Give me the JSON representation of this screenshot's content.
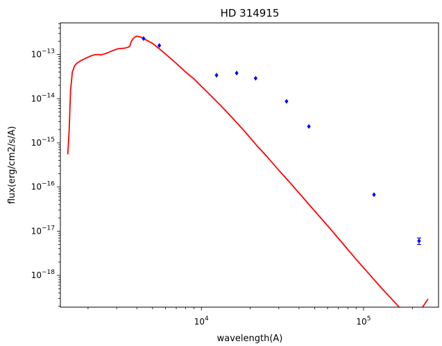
{
  "chart_data": {
    "type": "scatter",
    "title": "HD 314915",
    "xlabel": "wavelength(A)",
    "ylabel": "flux(erg/cm2/s/A)",
    "xscale": "log",
    "yscale": "log",
    "xlim": [
      1350,
      290000
    ],
    "ylim": [
      1.9e-19,
      5.2e-13
    ],
    "x_ticks": [
      {
        "value": 10000,
        "base": "10",
        "exp": "4"
      },
      {
        "value": 100000,
        "base": "10",
        "exp": "5"
      }
    ],
    "y_ticks": [
      {
        "value": 1e-13,
        "base": "10",
        "exp": "−13"
      },
      {
        "value": 1e-14,
        "base": "10",
        "exp": "−14"
      },
      {
        "value": 1e-15,
        "base": "10",
        "exp": "−15"
      },
      {
        "value": 1e-16,
        "base": "10",
        "exp": "−16"
      },
      {
        "value": 1e-17,
        "base": "10",
        "exp": "−17"
      },
      {
        "value": 1e-18,
        "base": "10",
        "exp": "−18"
      }
    ],
    "grid": false,
    "legend": "none",
    "series": [
      {
        "kind": "model_line",
        "color": "#ff0000",
        "x": [
          1500,
          1530,
          1560,
          1600,
          1650,
          1700,
          1800,
          1900,
          2000,
          2100,
          2200,
          2300,
          2400,
          2500,
          2600,
          2700,
          2800,
          2900,
          3000,
          3100,
          3200,
          3300,
          3400,
          3500,
          3600,
          3650,
          3700,
          3800,
          3900,
          4000,
          4100,
          4200,
          4400,
          4600,
          5000,
          5500,
          6000,
          7000,
          8000,
          9000,
          10000,
          11000,
          12000,
          13000,
          14000,
          15000,
          17000,
          19000,
          22000,
          25000,
          30000,
          35000,
          40000,
          50000,
          60000,
          75000,
          90000,
          110000,
          130000,
          160000,
          200000,
          250000
        ],
        "y": [
          5.5e-16,
          2e-15,
          1.5e-14,
          4e-14,
          5.5e-14,
          6.3e-14,
          7.2e-14,
          8e-14,
          8.7e-14,
          9.4e-14,
          9.9e-14,
          1e-13,
          9.8e-14,
          1.02e-13,
          1.07e-13,
          1.13e-13,
          1.2e-13,
          1.26e-13,
          1.32e-13,
          1.36e-13,
          1.37e-13,
          1.38e-13,
          1.4e-13,
          1.45e-13,
          1.5e-13,
          1.7e-13,
          2e-13,
          2.3e-13,
          2.5e-13,
          2.6e-13,
          2.55e-13,
          2.5e-13,
          2.3e-13,
          2.1e-13,
          1.78e-13,
          1.35e-13,
          1.03e-13,
          6.3e-14,
          4e-14,
          2.8e-14,
          1.9e-14,
          1.35e-14,
          9.8e-15,
          7.3e-15,
          5.5e-15,
          4.2e-15,
          2.55e-15,
          1.62e-15,
          8.6e-16,
          5.2e-16,
          2.4e-16,
          1.28e-16,
          7.3e-17,
          2.85e-17,
          1.33e-17,
          5.1e-18,
          2.3e-18,
          1e-18,
          5e-19,
          2.2e-19,
          8.8e-20,
          2.9e-19
        ]
      },
      {
        "kind": "photometry",
        "color": "#0000ff",
        "x": [
          4400,
          5500,
          12400,
          16500,
          21600,
          33500,
          46000,
          116000,
          220000
        ],
        "y": [
          2.3e-13,
          1.6e-13,
          3.4e-14,
          3.8e-14,
          2.9e-14,
          8.7e-15,
          2.35e-15,
          6.7e-17,
          6e-18
        ],
        "yerr": [
          0,
          0,
          0,
          0,
          0,
          0,
          0,
          0,
          1e-18
        ]
      }
    ]
  }
}
